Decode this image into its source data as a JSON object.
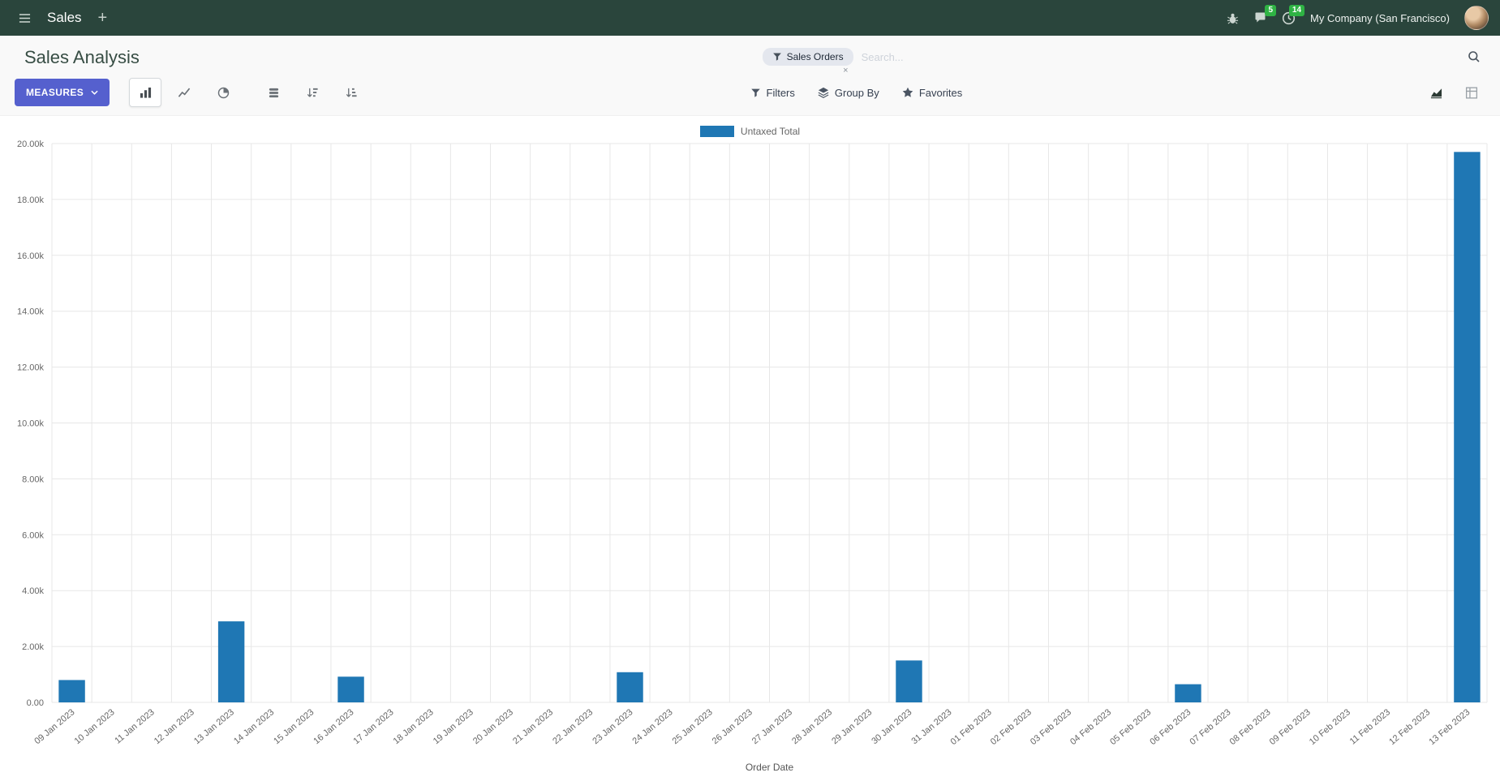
{
  "colors": {
    "navbar": "#2a453c",
    "accent": "#5560ce",
    "badge": "#2fb344",
    "bar": "#1f77b4"
  },
  "icons": {
    "plus": "+",
    "close": "×"
  },
  "navbar": {
    "app_name": "Sales",
    "messages_badge": "5",
    "activities_badge": "14",
    "company": "My Company (San Francisco)"
  },
  "control_panel": {
    "title": "Sales Analysis",
    "measures_label": "MEASURES",
    "filters_label": "Filters",
    "group_by_label": "Group By",
    "favorites_label": "Favorites",
    "search": {
      "facet": "Sales Orders",
      "placeholder": "Search..."
    }
  },
  "chart_data": {
    "type": "bar",
    "title": "",
    "xlabel": "Order Date",
    "ylabel": "",
    "ylim": [
      0,
      20000
    ],
    "ytick_step": 2000,
    "ytick_labels": [
      "0.00",
      "2.00k",
      "4.00k",
      "6.00k",
      "8.00k",
      "10.00k",
      "12.00k",
      "14.00k",
      "16.00k",
      "18.00k",
      "20.00k"
    ],
    "grid": true,
    "legend_position": "top",
    "categories": [
      "09 Jan 2023",
      "10 Jan 2023",
      "11 Jan 2023",
      "12 Jan 2023",
      "13 Jan 2023",
      "14 Jan 2023",
      "15 Jan 2023",
      "16 Jan 2023",
      "17 Jan 2023",
      "18 Jan 2023",
      "19 Jan 2023",
      "20 Jan 2023",
      "21 Jan 2023",
      "22 Jan 2023",
      "23 Jan 2023",
      "24 Jan 2023",
      "25 Jan 2023",
      "26 Jan 2023",
      "27 Jan 2023",
      "28 Jan 2023",
      "29 Jan 2023",
      "30 Jan 2023",
      "31 Jan 2023",
      "01 Feb 2023",
      "02 Feb 2023",
      "03 Feb 2023",
      "04 Feb 2023",
      "05 Feb 2023",
      "06 Feb 2023",
      "07 Feb 2023",
      "08 Feb 2023",
      "09 Feb 2023",
      "10 Feb 2023",
      "11 Feb 2023",
      "12 Feb 2023",
      "13 Feb 2023"
    ],
    "series": [
      {
        "name": "Untaxed Total",
        "color": "#1f77b4",
        "values": [
          800,
          0,
          0,
          0,
          2900,
          0,
          0,
          920,
          0,
          0,
          0,
          0,
          0,
          0,
          1080,
          0,
          0,
          0,
          0,
          0,
          0,
          1500,
          0,
          0,
          0,
          0,
          0,
          0,
          650,
          0,
          0,
          0,
          0,
          0,
          0,
          19700
        ]
      }
    ]
  }
}
